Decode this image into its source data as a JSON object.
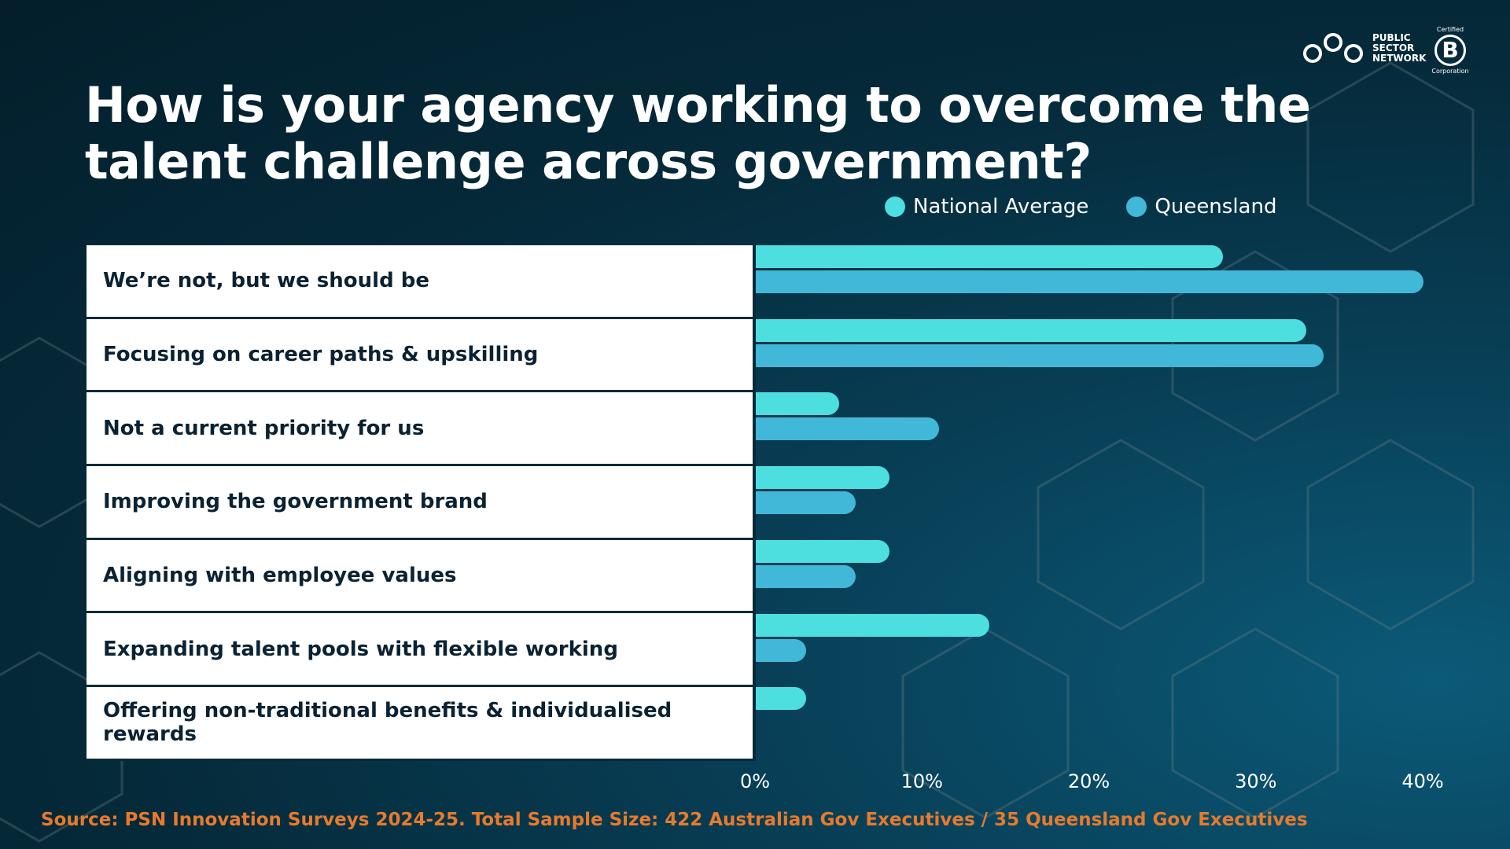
{
  "title": "How is your agency working to overcome the talent challenge across government?",
  "logo": {
    "line1": "PUBLIC",
    "line2": "SECTOR",
    "line3": "NETWORK",
    "bcorp_top": "Certified",
    "bcorp_letter": "B",
    "bcorp_bottom": "Corporation"
  },
  "source": "Source: PSN Innovation Surveys 2024-25. Total Sample Size: 422 Australian Gov Executives / 35 Queensland Gov Executives",
  "colors": {
    "national": "#4ddfdf",
    "queensland": "#42b8d8",
    "source": "#e87a2c"
  },
  "chart_data": {
    "type": "bar",
    "orientation": "horizontal",
    "title": "How is your agency working to overcome the talent challenge across government?",
    "categories": [
      "We’re not, but we should be",
      "Focusing on career paths & upskilling",
      "Not a current priority for us",
      "Improving the government brand",
      "Aligning with employee values",
      "Expanding talent pools with flexible working",
      "Offering non-traditional benefits & individualised rewards"
    ],
    "series": [
      {
        "name": "National Average",
        "values": [
          28,
          33,
          5,
          8,
          8,
          14,
          3
        ]
      },
      {
        "name": "Queensland",
        "values": [
          40,
          34,
          11,
          6,
          6,
          3,
          0
        ]
      }
    ],
    "xlim": [
      0,
      40
    ],
    "xticks": [
      "0%",
      "10%",
      "20%",
      "30%",
      "40%"
    ],
    "legend": "top-right",
    "grid": false
  }
}
